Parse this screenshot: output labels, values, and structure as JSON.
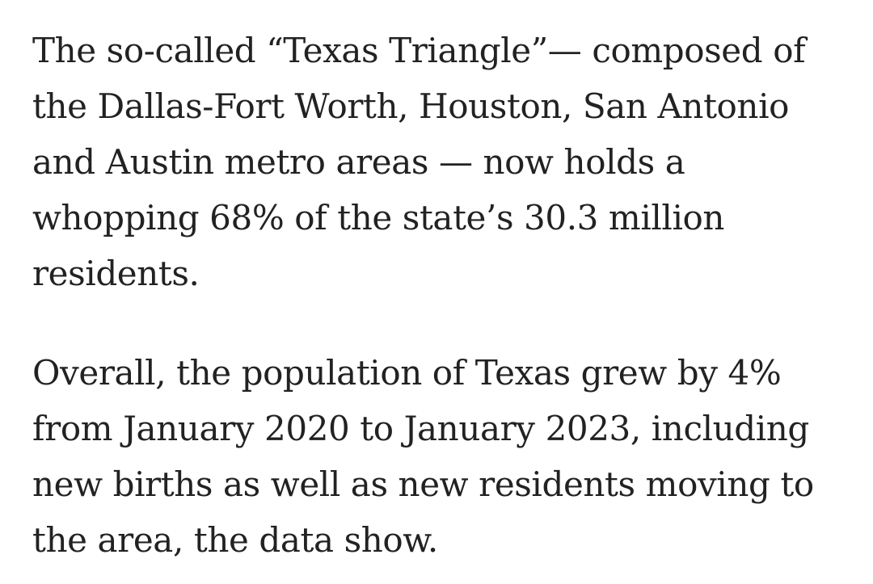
{
  "article": {
    "paragraphs": [
      {
        "lines": [
          "The so-called “Texas Triangle”— composed of",
          "the Dallas-Fort Worth, Houston, San Antonio",
          "and Austin metro areas — now holds a",
          "whopping 68% of the state’s 30.3 million",
          "residents."
        ]
      },
      {
        "lines": [
          "Overall, the population of Texas grew by 4%",
          "from January 2020 to January 2023, including",
          "new births as well as new residents moving to",
          "the area, the data show."
        ]
      }
    ]
  }
}
